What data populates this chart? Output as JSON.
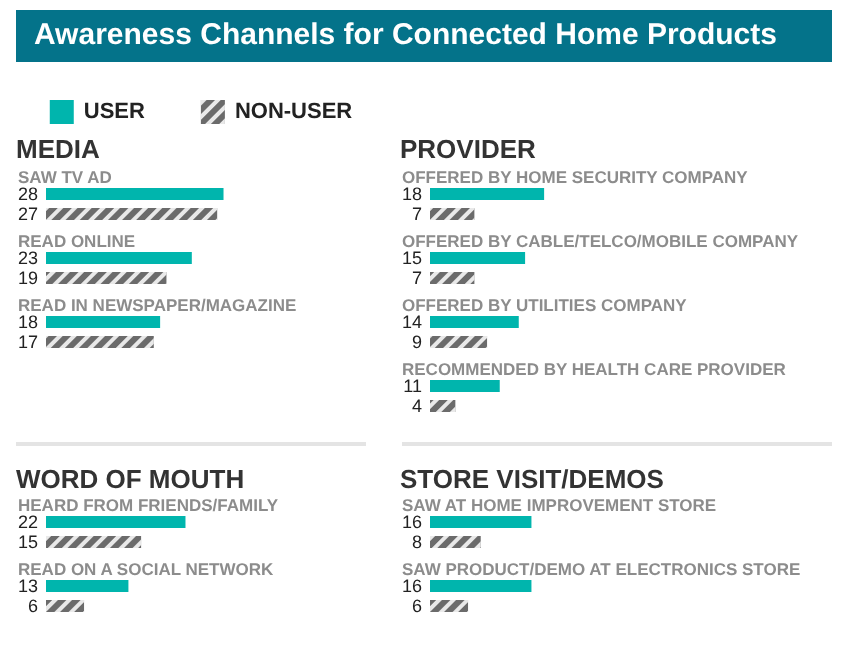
{
  "chart_data": [
    {
      "type": "other",
      "title": "Awareness Channels for Connected Home Products"
    },
    {
      "type": "bar",
      "orientation": "horizontal",
      "title": "MEDIA",
      "categories": [
        "SAW TV AD",
        "READ ONLINE",
        "READ IN NEWSPAPER/MAGAZINE"
      ],
      "data_labels": true,
      "legend": "top",
      "series": [
        {
          "name": "USER",
          "color": "#00b5ad",
          "values": [
            28,
            23,
            18
          ]
        },
        {
          "name": "NON-USER",
          "color": "#6b6b6b",
          "values": [
            27,
            19,
            17
          ]
        }
      ]
    },
    {
      "type": "bar",
      "orientation": "horizontal",
      "title": "PROVIDER",
      "categories": [
        "OFFERED BY HOME SECURITY COMPANY",
        "OFFERED BY CABLE/TELCO/MOBILE COMPANY",
        "OFFERED BY UTILITIES COMPANY",
        "RECOMMENDED BY HEALTH CARE PROVIDER"
      ],
      "data_labels": true,
      "series": [
        {
          "color": "#00b5ad",
          "values": [
            18,
            15,
            14,
            11
          ]
        },
        {
          "color": "#6b6b6b",
          "values": [
            7,
            7,
            9,
            4
          ]
        }
      ]
    },
    {
      "type": "bar",
      "orientation": "horizontal",
      "title": "WORD OF MOUTH",
      "categories": [
        "HEARD FROM FRIENDS/FAMILY",
        "READ ON A SOCIAL NETWORK"
      ],
      "data_labels": true,
      "series": [
        {
          "color": "#00b5ad",
          "values": [
            22,
            13
          ]
        },
        {
          "color": "#6b6b6b",
          "values": [
            15,
            6
          ]
        }
      ]
    },
    {
      "type": "bar",
      "orientation": "horizontal",
      "title": "STORE VISIT/DEMOS",
      "categories": [
        "SAW AT HOME IMPROVEMENT STORE",
        "SAW PRODUCT/DEMO AT ELECTRONICS STORE"
      ],
      "data_labels": true,
      "series": [
        {
          "color": "#00b5ad",
          "values": [
            16,
            16
          ]
        },
        {
          "color": "#6b6b6b",
          "values": [
            8,
            6
          ]
        }
      ]
    }
  ]
}
